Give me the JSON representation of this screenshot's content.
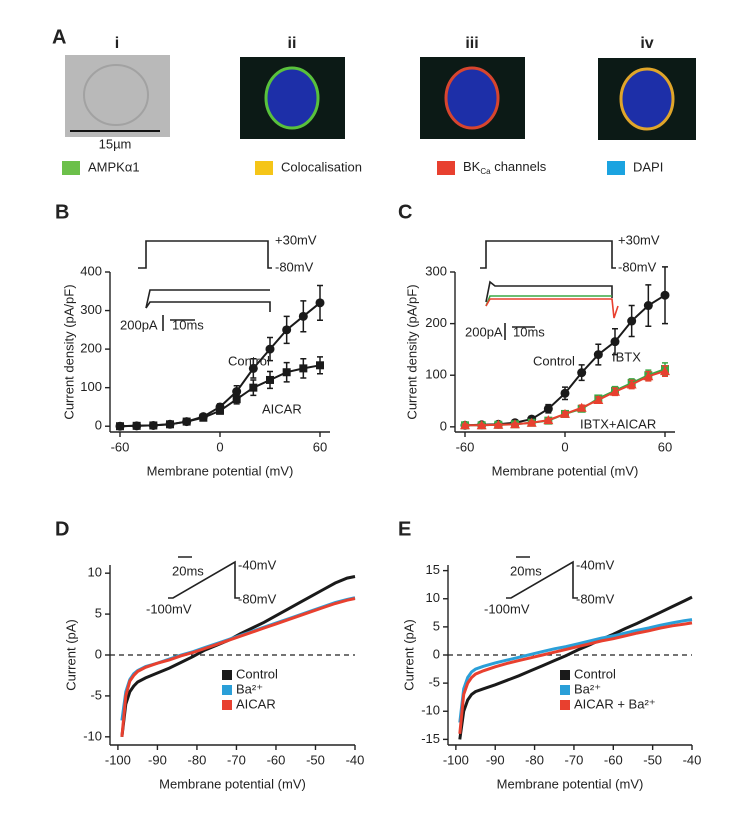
{
  "panel_a": {
    "label": "A",
    "images": [
      "i",
      "ii",
      "iii",
      "iv"
    ],
    "scale_bar": "15µm",
    "legend": [
      {
        "label": "AMPKα1",
        "color": "#6cc04a"
      },
      {
        "label": "Colocalisation",
        "color": "#f5c518"
      },
      {
        "label_parts": [
          "BK",
          "Ca",
          " channels"
        ],
        "color": "#e8402f"
      },
      {
        "label": "DAPI",
        "color": "#1ba3e0"
      }
    ]
  },
  "chart_data": [
    {
      "type": "line",
      "panel": "B",
      "xlabel": "Membrane potential (mV)",
      "ylabel": "Current density (pA/pF)",
      "xlim": [
        -66,
        66
      ],
      "ylim": [
        -15,
        400
      ],
      "xticks": [
        -60,
        0,
        60
      ],
      "yticks": [
        0,
        100,
        200,
        300,
        400
      ],
      "inset_labels": [
        "+30mV",
        "-80mV",
        "200pA",
        "10ms"
      ],
      "x": [
        -60,
        -50,
        -40,
        -30,
        -20,
        -10,
        0,
        10,
        20,
        30,
        40,
        50,
        60
      ],
      "series": [
        {
          "name": "Control",
          "color": "#1a1a1a",
          "marker": "circle",
          "values": [
            0,
            1,
            2,
            5,
            12,
            25,
            50,
            90,
            150,
            200,
            250,
            285,
            320
          ],
          "errors": [
            0,
            0,
            0,
            2,
            3,
            5,
            8,
            15,
            25,
            30,
            35,
            40,
            45
          ]
        },
        {
          "name": "AICAR",
          "color": "#1a1a1a",
          "marker": "square",
          "values": [
            0,
            1,
            2,
            5,
            12,
            22,
            40,
            70,
            100,
            120,
            140,
            150,
            158
          ],
          "errors": [
            0,
            0,
            0,
            2,
            3,
            5,
            8,
            12,
            20,
            22,
            25,
            25,
            22
          ]
        }
      ]
    },
    {
      "type": "line",
      "panel": "C",
      "xlabel": "Membrane potential (mV)",
      "ylabel": "Current density (pA/pF)",
      "xlim": [
        -66,
        66
      ],
      "ylim": [
        -10,
        300
      ],
      "xticks": [
        -60,
        0,
        60
      ],
      "yticks": [
        0,
        100,
        200,
        300
      ],
      "inset_labels": [
        "+30mV",
        "-80mV",
        "200pA",
        "10ms"
      ],
      "x": [
        -60,
        -50,
        -40,
        -30,
        -20,
        -10,
        0,
        10,
        20,
        30,
        40,
        50,
        60
      ],
      "series": [
        {
          "name": "Control",
          "color": "#1a1a1a",
          "marker": "circle",
          "values": [
            3,
            4,
            5,
            8,
            15,
            35,
            65,
            105,
            140,
            165,
            205,
            235,
            255
          ],
          "errors": [
            2,
            2,
            2,
            3,
            5,
            8,
            12,
            15,
            20,
            25,
            30,
            40,
            55
          ]
        },
        {
          "name": "IBTX",
          "color": "#3aa845",
          "marker": "square",
          "values": [
            3,
            3,
            4,
            5,
            8,
            12,
            25,
            35,
            55,
            70,
            85,
            100,
            112
          ],
          "errors": [
            2,
            2,
            2,
            2,
            3,
            3,
            4,
            5,
            6,
            8,
            8,
            10,
            12
          ]
        },
        {
          "name": "IBTX+AICAR",
          "color": "#e8402f",
          "marker": "triangle",
          "values": [
            3,
            3,
            4,
            5,
            8,
            13,
            25,
            37,
            52,
            68,
            82,
            98,
            108
          ],
          "errors": [
            2,
            2,
            2,
            2,
            3,
            3,
            4,
            5,
            6,
            7,
            8,
            9,
            10
          ]
        }
      ]
    },
    {
      "type": "line",
      "panel": "D",
      "xlabel": "Membrane potential (mV)",
      "ylabel": "Current (pA)",
      "xlim": [
        -102,
        -40
      ],
      "ylim": [
        -11,
        11
      ],
      "xticks": [
        -100,
        -90,
        -80,
        -70,
        -60,
        -50,
        -40
      ],
      "yticks": [
        -10,
        -5,
        0,
        5,
        10
      ],
      "hline": 0,
      "inset_labels": [
        "20ms",
        "-40mV",
        "-80mV",
        "-100mV"
      ],
      "x": [
        -99,
        -98,
        -97,
        -96,
        -95,
        -93,
        -90,
        -87,
        -84,
        -81,
        -78,
        -75,
        -72,
        -69,
        -66,
        -63,
        -60,
        -57,
        -54,
        -51,
        -48,
        -45,
        -42,
        -40
      ],
      "series": [
        {
          "name": "Control",
          "color": "#1a1a1a",
          "values": [
            -10,
            -6,
            -4.5,
            -3.8,
            -3.3,
            -2.8,
            -2.2,
            -1.6,
            -0.9,
            -0.2,
            0.6,
            1.2,
            1.8,
            2.6,
            3.3,
            4.0,
            4.8,
            5.6,
            6.4,
            7.2,
            8.0,
            8.8,
            9.4,
            9.6
          ]
        },
        {
          "name": "Ba²⁺",
          "color": "#2a9fd8",
          "values": [
            -8,
            -4.5,
            -3,
            -2.3,
            -1.9,
            -1.4,
            -1.0,
            -0.5,
            0,
            0.4,
            0.9,
            1.4,
            1.9,
            2.4,
            2.9,
            3.4,
            3.9,
            4.4,
            4.9,
            5.4,
            5.9,
            6.4,
            6.8,
            7.0
          ]
        },
        {
          "name": "AICAR",
          "color": "#e8402f",
          "values": [
            -10,
            -5,
            -3.2,
            -2.5,
            -2.0,
            -1.5,
            -1.0,
            -0.6,
            -0.1,
            0.3,
            0.8,
            1.3,
            1.8,
            2.3,
            2.8,
            3.3,
            3.8,
            4.3,
            4.8,
            5.3,
            5.8,
            6.3,
            6.7,
            6.9
          ]
        }
      ]
    },
    {
      "type": "line",
      "panel": "E",
      "xlabel": "Membrane potential (mV)",
      "ylabel": "Current (pA)",
      "xlim": [
        -102,
        -40
      ],
      "ylim": [
        -16,
        16
      ],
      "xticks": [
        -100,
        -90,
        -80,
        -70,
        -60,
        -50,
        -40
      ],
      "yticks": [
        -15,
        -10,
        -5,
        0,
        5,
        10,
        15
      ],
      "hline": 0,
      "inset_labels": [
        "20ms",
        "-40mV",
        "-80mV",
        "-100mV"
      ],
      "x": [
        -99,
        -98,
        -97,
        -96,
        -95,
        -93,
        -90,
        -87,
        -84,
        -81,
        -78,
        -75,
        -72,
        -69,
        -66,
        -63,
        -60,
        -57,
        -54,
        -51,
        -48,
        -45,
        -42,
        -40
      ],
      "series": [
        {
          "name": "Control",
          "color": "#1a1a1a",
          "values": [
            -15,
            -10,
            -8,
            -7,
            -6.5,
            -6,
            -5.3,
            -4.5,
            -3.7,
            -2.8,
            -1.9,
            -1,
            -0.1,
            0.9,
            1.8,
            2.8,
            3.7,
            4.7,
            5.6,
            6.6,
            7.6,
            8.6,
            9.6,
            10.3
          ]
        },
        {
          "name": "Ba²⁺",
          "color": "#2a9fd8",
          "values": [
            -12,
            -6,
            -4,
            -3,
            -2.5,
            -2,
            -1.4,
            -0.9,
            -0.4,
            0.1,
            0.6,
            1.1,
            1.5,
            2,
            2.5,
            3,
            3.4,
            3.9,
            4.4,
            4.8,
            5.3,
            5.7,
            6.1,
            6.3
          ]
        },
        {
          "name": "AICAR + Ba²⁺",
          "color": "#e8402f",
          "values": [
            -14,
            -7,
            -5,
            -4,
            -3.4,
            -2.8,
            -2.1,
            -1.5,
            -1,
            -0.5,
            0,
            0.5,
            1,
            1.5,
            2,
            2.5,
            2.9,
            3.4,
            3.9,
            4.3,
            4.8,
            5.2,
            5.5,
            5.7
          ]
        }
      ]
    }
  ]
}
